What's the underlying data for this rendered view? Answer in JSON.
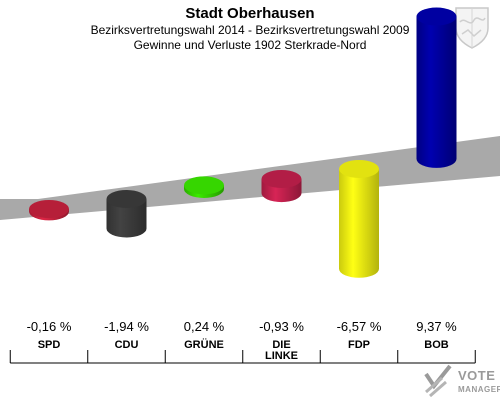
{
  "header": {
    "title": "Stadt Oberhausen",
    "subtitle": "Bezirksvertretungswahl 2014 - Bezirksvertretungswahl 2009",
    "subtitle2": "Gewinne und Verluste 1902 Sterkrade-Nord"
  },
  "chart_data": {
    "type": "bar",
    "categories": [
      "SPD",
      "CDU",
      "GRÜNE",
      "DIE LINKE",
      "FDP",
      "BOB"
    ],
    "category_lines": [
      [
        "SPD"
      ],
      [
        "CDU"
      ],
      [
        "GRÜNE"
      ],
      [
        "DIE",
        "LINKE"
      ],
      [
        "FDP"
      ],
      [
        "BOB"
      ]
    ],
    "values": [
      -0.16,
      -1.94,
      0.24,
      -0.93,
      -6.57,
      9.37
    ],
    "value_labels": [
      "-0,16 %",
      "-1,94 %",
      "0,24 %",
      "-0,93 %",
      "-6,57 %",
      "9,37 %"
    ],
    "colors": [
      "#c0213c",
      "#3a3a3a",
      "#33cc00",
      "#bb1f4a",
      "#eeee11",
      "#000099"
    ],
    "ylim": [
      -9.5,
      9.5
    ],
    "grid": false,
    "legend": "none"
  },
  "logo": {
    "name": "VOTE",
    "sub": "MANAGER"
  }
}
